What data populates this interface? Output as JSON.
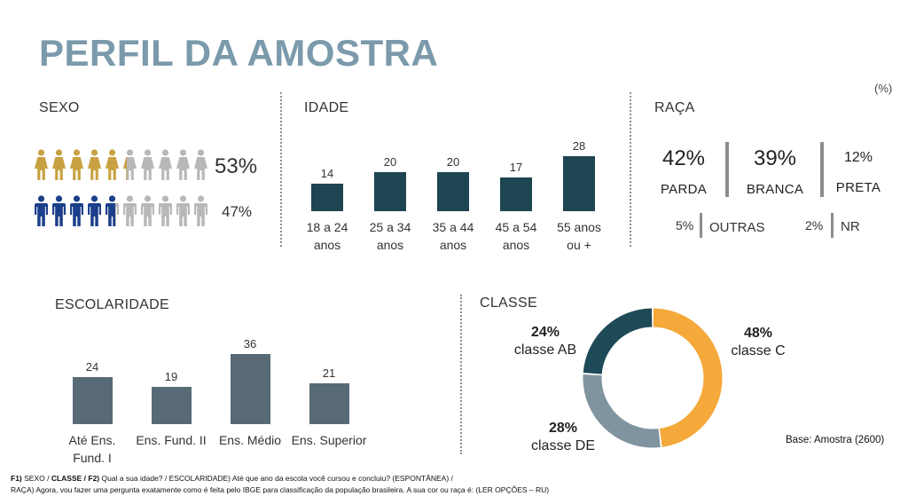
{
  "title": "PERFIL DA AMOSTRA",
  "unit": "(%)",
  "colors": {
    "title": "#7b9aab",
    "female": "#c8a242",
    "male": "#1b3f8b",
    "grey_icon": "#b8b8b8",
    "idade_bar": "#1e4552",
    "escolaridade_bar": "#586a76",
    "classe_ab": "#1e4a57",
    "classe_c": "#f4a93a",
    "classe_de": "#7f949f"
  },
  "icons": {
    "female": "woman-icon",
    "male": "man-icon"
  },
  "sexo": {
    "title": "SEXO",
    "rows": [
      {
        "gender": "female",
        "pct_label": "53%",
        "value": 53
      },
      {
        "gender": "male",
        "pct_label": "47%",
        "value": 47
      }
    ]
  },
  "idade": {
    "title": "IDADE",
    "chart_data": {
      "type": "bar",
      "categories": [
        "18 a 24 anos",
        "25 a 34 anos",
        "35 a 44 anos",
        "45 a 54 anos",
        "55 anos ou +"
      ],
      "values": [
        14,
        20,
        20,
        17,
        28
      ],
      "ylim": [
        0,
        28
      ]
    }
  },
  "raca": {
    "title": "RAÇA",
    "main": [
      {
        "pct": "42%",
        "label": "PARDA"
      },
      {
        "pct": "39%",
        "label": "BRANCA"
      },
      {
        "pct": "12%",
        "label": "PRETA"
      }
    ],
    "minor": [
      {
        "pct": "5%",
        "label": "OUTRAS"
      },
      {
        "pct": "2%",
        "label": "NR"
      }
    ]
  },
  "escolaridade": {
    "title": "ESCOLARIDADE",
    "chart_data": {
      "type": "bar",
      "categories": [
        "Até Ens. Fund. I",
        "Ens. Fund. II",
        "Ens. Médio",
        "Ens. Superior"
      ],
      "values": [
        24,
        19,
        36,
        21
      ],
      "ylim": [
        0,
        36
      ]
    }
  },
  "classe": {
    "title": "CLASSE",
    "chart_data": {
      "type": "pie",
      "donut": true,
      "slices": [
        {
          "pct": "48%",
          "label": "classe C",
          "value": 48,
          "color": "#f4a93a"
        },
        {
          "pct": "28%",
          "label": "classe DE",
          "value": 28,
          "color": "#7f949f"
        },
        {
          "pct": "24%",
          "label": "classe AB",
          "value": 24,
          "color": "#1e4a57"
        }
      ]
    }
  },
  "base": "Base: Amostra (2600)",
  "footnote": {
    "line1_a": "F1)",
    "line1_b": " SEXO  / ",
    "line1_c": "CLASSE /  F2)",
    "line1_d": " Qual a sua idade? / ESCOLARIDADE) Até que ano da escola você cursou e concluiu? (ESPONTÂNEA) /",
    "line2": "RAÇA) Agora, vou fazer uma pergunta exatamente como é feita pelo IBGE para classificação da população brasileira. A sua cor ou raça é: (LER OPÇÕES – RU)"
  }
}
